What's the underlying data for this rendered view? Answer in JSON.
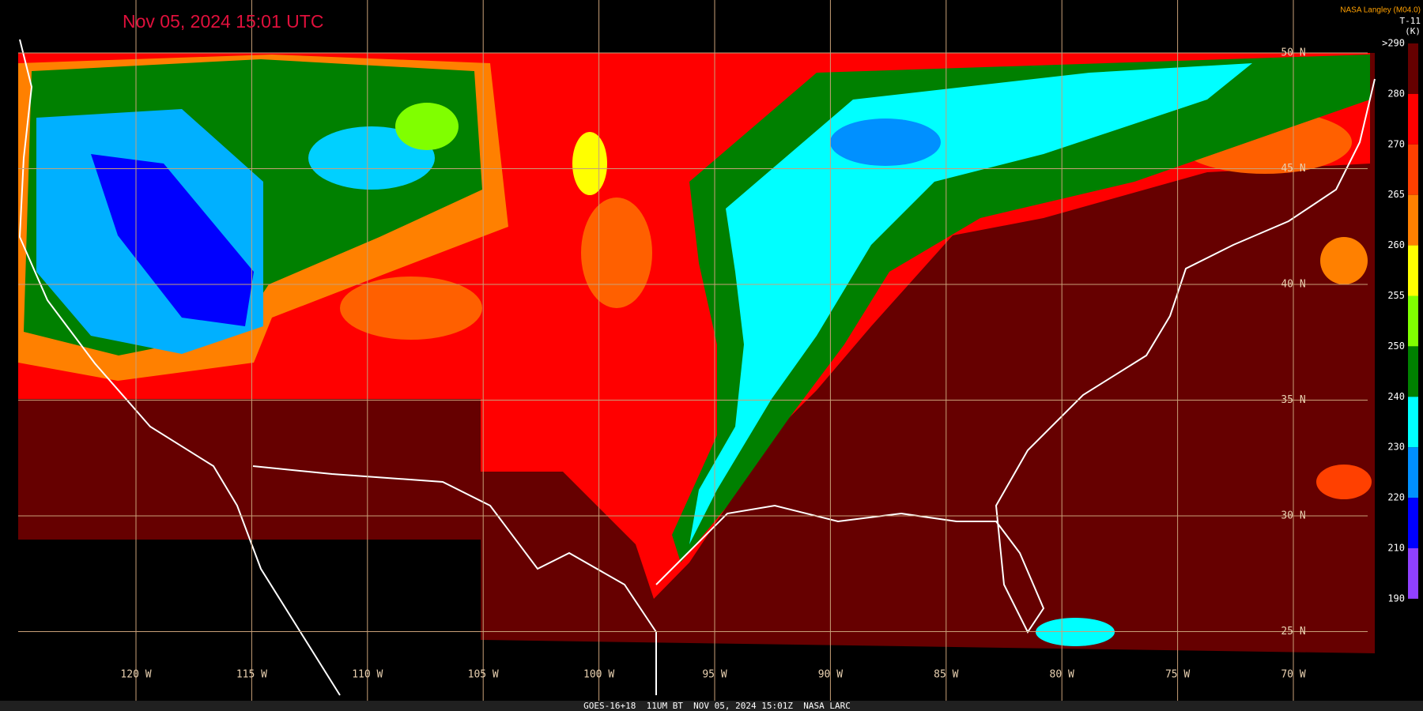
{
  "header": {
    "title": "Nov 05, 2024 15:01 UTC",
    "credit": "NASA Langley (M04.0)"
  },
  "colorbar": {
    "channel": "T-11",
    "unit": "(K)",
    "labels": [
      ">290",
      "280",
      "270",
      "265",
      "260",
      "255",
      "250",
      "240",
      "230",
      "220",
      "210",
      "190"
    ],
    "colors": [
      "#660000",
      "#ff0000",
      "#ff4000",
      "#ff8000",
      "#ffff00",
      "#80ff00",
      "#008000",
      "#00ffff",
      "#0090ff",
      "#0000ff",
      "#9040ff"
    ]
  },
  "grid": {
    "latitude_labels": [
      "50 N",
      "45 N",
      "40 N",
      "35 N",
      "30 N",
      "25 N"
    ],
    "longitude_labels": [
      "120 W",
      "115 W",
      "110 W",
      "105 W",
      "100 W",
      "95 W",
      "90 W",
      "85 W",
      "80 W",
      "75 W",
      "70 W"
    ]
  },
  "footer": "GOES-16+18  11UM BT  NOV 05, 2024 15:01Z  NASA LARC"
}
